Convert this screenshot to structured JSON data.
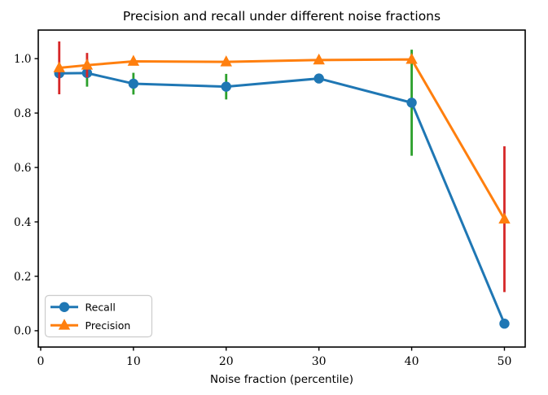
{
  "chart_data": {
    "type": "line",
    "title": "Precision and recall under different noise fractions",
    "xlabel": "Noise fraction (percentile)",
    "ylabel": "",
    "x": [
      2,
      5,
      10,
      20,
      30,
      40,
      50
    ],
    "series": [
      {
        "name": "Recall",
        "marker": "circle",
        "color": "#1f77b4",
        "error_color": "#2ca02c",
        "values": [
          0.946,
          0.947,
          0.908,
          0.897,
          0.927,
          0.838,
          0.026
        ],
        "errors": [
          0,
          0.05,
          0.04,
          0.047,
          0,
          0.195,
          0
        ]
      },
      {
        "name": "Precision",
        "marker": "triangle",
        "color": "#ff7f0e",
        "error_color": "#d62728",
        "values": [
          0.966,
          0.976,
          0.99,
          0.988,
          0.995,
          0.997,
          0.41
        ],
        "errors": [
          0.097,
          0.045,
          0,
          0,
          0,
          0,
          0.268
        ]
      }
    ],
    "x_ticks": [
      0,
      10,
      20,
      30,
      40,
      50
    ],
    "y_ticks": [
      "0.0",
      "0.2",
      "0.4",
      "0.6",
      "0.8",
      "1.0"
    ],
    "xlim": [
      -0.26,
      52.24
    ],
    "ylim": [
      -0.06,
      1.105
    ],
    "grid": false,
    "legend": {
      "location": "lower left",
      "entries": [
        "Recall",
        "Precision"
      ]
    },
    "axis_color": "#000000",
    "legend_border_color": "#cccccc"
  }
}
